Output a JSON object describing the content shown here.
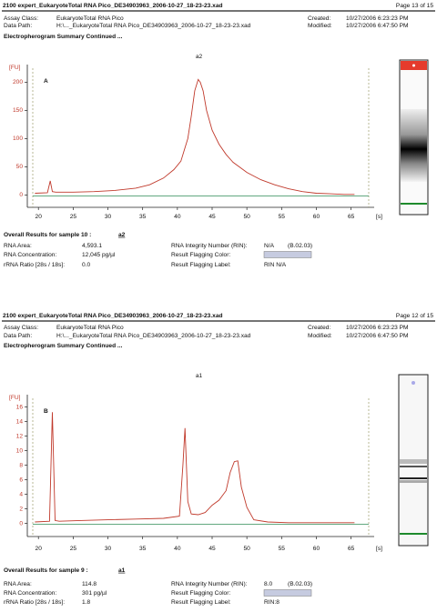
{
  "reports": [
    {
      "file": "2100 expert_EukaryoteTotal RNA Pico_DE34903963_2006-10-27_18-23-23.xad",
      "page": "Page 13 of 15",
      "assay_label": "Assay Class:",
      "assay": "EukaryoteTotal RNA Pico",
      "created_label": "Created:",
      "created": "10/27/2006 6:23:23 PM",
      "path_label": "Data Path:",
      "path": "H:\\..._EukaryoteTotal RNA Pico_DE34903963_2006-10-27_18-23-23.xad",
      "modified_label": "Modified:",
      "modified": "10/27/2006 6:47:50 PM",
      "section": "Electropherogram Summary Continued ...",
      "results_title": "Overall Results for sample 10 :",
      "sample": "a2",
      "left_rows": [
        [
          "RNA Area:",
          "4,593.1"
        ],
        [
          "RNA Concentration:",
          "12,045 pg/µl"
        ],
        [
          "rRNA Ratio [28s / 18s]:",
          "0.0"
        ]
      ],
      "right_rows": [
        [
          "RNA Integrity Number (RIN):",
          "N/A",
          "(B.02.03)"
        ],
        [
          "Result Flagging Color:"
        ],
        [
          "Result Flagging Label:",
          "RIN N/A"
        ]
      ]
    },
    {
      "file": "2100 expert_EukaryoteTotal RNA Pico_DE34903963_2006-10-27_18-23-23.xad",
      "page": "Page 12 of 15",
      "assay_label": "Assay Class:",
      "assay": "EukaryoteTotal RNA Pico",
      "created_label": "Created:",
      "created": "10/27/2006 6:23:23 PM",
      "path_label": "Data Path:",
      "path": "H:\\..._EukaryoteTotal RNA Pico_DE34903963_2006-10-27_18-23-23.xad",
      "modified_label": "Modified:",
      "modified": "10/27/2006 6:47:50 PM",
      "section": "Electropherogram Summary Continued ...",
      "results_title": "Overall Results for sample 9 :",
      "sample": "a1",
      "left_rows": [
        [
          "RNA Area:",
          "114.8"
        ],
        [
          "RNA Concentration:",
          "301 pg/µl"
        ],
        [
          "rRNA Ratio [28s / 18s]:",
          "1.8"
        ]
      ],
      "right_rows": [
        [
          "RNA Integrity Number (RIN):",
          "8.0",
          "(B.02.03)"
        ],
        [
          "Result Flagging Color:"
        ],
        [
          "Result Flagging Label:",
          "RIN:8"
        ]
      ]
    }
  ],
  "chart_data": [
    {
      "type": "line",
      "title": "a2",
      "panel_label": "A",
      "y_label": "[FU]",
      "x_label": "[s]",
      "color": "#c0392b",
      "x": [
        19.5,
        21.3,
        21.7,
        22.0,
        22.5,
        25,
        28,
        31,
        34,
        36,
        38,
        39.5,
        40.5,
        41,
        41.5,
        42,
        42.5,
        43,
        43.3,
        43.7,
        44.2,
        45,
        46,
        47,
        48,
        50,
        52,
        54,
        56,
        58,
        60,
        62,
        64,
        65.5
      ],
      "values": [
        3,
        4,
        25,
        6,
        5,
        5,
        6,
        8,
        12,
        18,
        30,
        45,
        60,
        80,
        100,
        140,
        185,
        205,
        200,
        185,
        150,
        115,
        90,
        72,
        58,
        40,
        27,
        18,
        11,
        6,
        3,
        2,
        1,
        1
      ],
      "xlim": [
        18.4,
        67.8
      ],
      "ylim": [
        -22,
        225
      ],
      "xticks": [
        20,
        25,
        30,
        35,
        40,
        45,
        50,
        55,
        60,
        65
      ],
      "yticks": [
        0,
        50,
        100,
        150,
        200
      ]
    },
    {
      "type": "line",
      "title": "a1",
      "panel_label": "B",
      "y_label": "[FU]",
      "x_label": "[s]",
      "color": "#c0392b",
      "x": [
        19.5,
        21.6,
        22.0,
        22.4,
        23,
        26,
        30,
        34,
        38,
        40.3,
        40.8,
        41.1,
        41.5,
        42,
        43,
        44,
        45,
        46,
        47,
        47.6,
        48.2,
        48.7,
        49.2,
        50,
        51,
        53,
        56,
        60,
        65.5
      ],
      "values": [
        0.2,
        0.3,
        15.3,
        0.4,
        0.3,
        0.4,
        0.5,
        0.6,
        0.7,
        1,
        8,
        13.1,
        3,
        1.3,
        1.2,
        1.5,
        2.5,
        3.2,
        4.5,
        7,
        8.5,
        8.6,
        5,
        2.2,
        0.5,
        0.2,
        0.1,
        0.1,
        0.1
      ],
      "xlim": [
        18.4,
        67.8
      ],
      "ylim": [
        -1.8,
        17.2
      ],
      "xticks": [
        20,
        25,
        30,
        35,
        40,
        45,
        50,
        55,
        60,
        65
      ],
      "yticks": [
        0,
        2,
        4,
        6,
        8,
        10,
        12,
        14,
        16
      ]
    }
  ]
}
